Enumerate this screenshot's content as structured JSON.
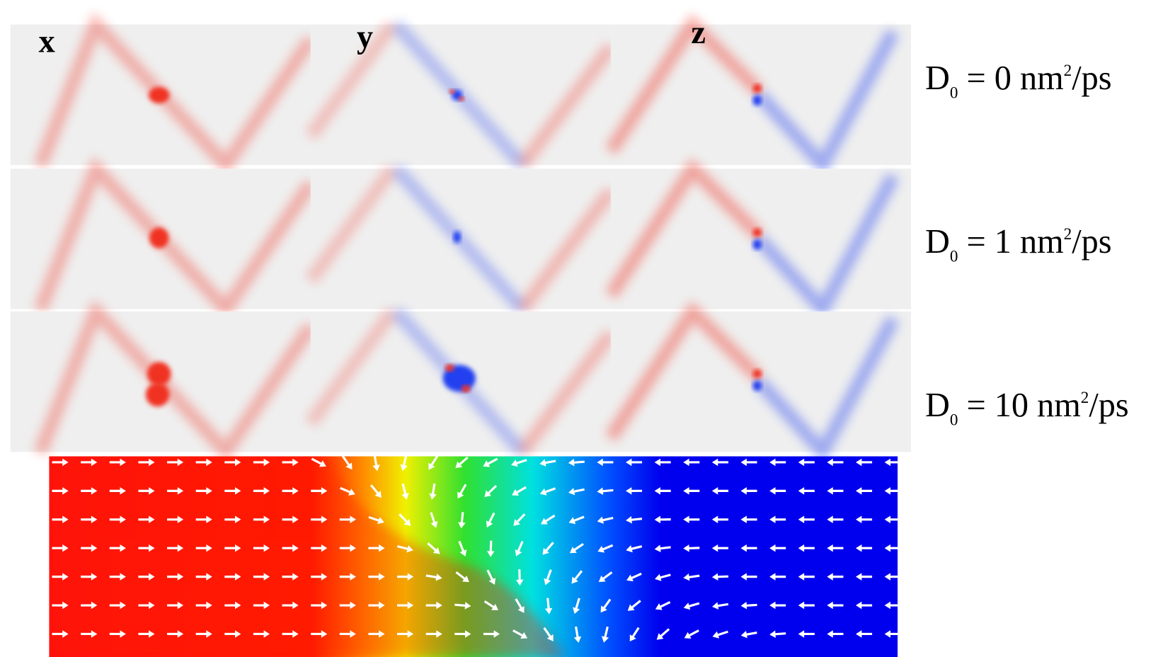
{
  "columns": [
    "x",
    "y",
    "z"
  ],
  "rows": [
    {
      "symbol": "D",
      "subscript": "0",
      "value": " = 0 nm",
      "superscript": "2",
      "unit": "/ps"
    },
    {
      "symbol": "D",
      "subscript": "0",
      "value": " = 1 nm",
      "superscript": "2",
      "unit": "/ps"
    },
    {
      "symbol": "D",
      "subscript": "0",
      "value": " = 10 nm",
      "superscript": "2",
      "unit": "/ps"
    }
  ]
}
